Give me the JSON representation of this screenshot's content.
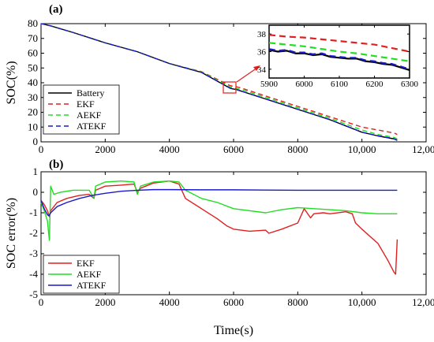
{
  "chart_data": [
    {
      "panel_label": "(a)",
      "type": "line",
      "ylabel": "SOC(%)",
      "xlim": [
        0,
        12000
      ],
      "ylim": [
        0,
        80
      ],
      "xticks": [
        "0",
        "2000",
        "4000",
        "6000",
        "8000",
        "10,000",
        "12,000"
      ],
      "yticks": [
        "0",
        "10",
        "20",
        "30",
        "40",
        "50",
        "60",
        "70",
        "80"
      ],
      "legend_position": "bottom-left",
      "series": [
        {
          "name": "Battery",
          "color": "#000000",
          "dash": "solid",
          "x": [
            0,
            300,
            1000,
            2000,
            3000,
            4000,
            5000,
            5900,
            6100,
            6300,
            7000,
            8000,
            9000,
            10000,
            10500,
            11000,
            11100
          ],
          "y": [
            80,
            78.5,
            74,
            67,
            61,
            53,
            47,
            36.2,
            35.3,
            33.9,
            29,
            22,
            15,
            6.5,
            4,
            2,
            1
          ]
        },
        {
          "name": "EKF",
          "color": "#e02020",
          "dash": "dashed",
          "x": [
            0,
            300,
            1000,
            2000,
            3000,
            4000,
            5000,
            5900,
            6100,
            6300,
            7000,
            8000,
            9000,
            10000,
            10500,
            11000,
            11100
          ],
          "y": [
            80,
            78.5,
            74,
            67,
            61,
            53,
            47.5,
            38,
            37.2,
            36,
            31,
            24,
            17,
            10,
            8,
            6,
            5
          ]
        },
        {
          "name": "AEKF",
          "color": "#22dd22",
          "dash": "dashed",
          "x": [
            0,
            300,
            1000,
            2000,
            3000,
            4000,
            5000,
            5900,
            6100,
            6300,
            7000,
            8000,
            9000,
            10000,
            10500,
            11000,
            11100
          ],
          "y": [
            80,
            78.5,
            74,
            67,
            61,
            53,
            47.3,
            37,
            36,
            35,
            30,
            23,
            16,
            8,
            5,
            3,
            2
          ]
        },
        {
          "name": "ATEKF",
          "color": "#1a1acc",
          "dash": "dashed",
          "x": [
            0,
            300,
            1000,
            2000,
            3000,
            4000,
            5000,
            5900,
            6100,
            6300,
            7000,
            8000,
            9000,
            10000,
            10500,
            11000,
            11100
          ],
          "y": [
            80,
            78.5,
            74,
            67,
            61,
            53,
            47,
            36.3,
            35.4,
            33.9,
            29,
            22,
            15,
            6.6,
            4.1,
            2.1,
            1.1
          ]
        }
      ]
    },
    {
      "type": "line",
      "inset_of": "(a)",
      "xlim": [
        5900,
        6300
      ],
      "ylim": [
        33,
        39
      ],
      "xticks": [
        "5900",
        "6000",
        "6100",
        "6200",
        "6300"
      ],
      "yticks": [
        "34",
        "36",
        "38"
      ],
      "series": [
        {
          "name": "EKF",
          "color": "#e02020",
          "dash": "dashed",
          "x": [
            5900,
            5950,
            6000,
            6050,
            6100,
            6150,
            6200,
            6250,
            6300
          ],
          "y": [
            37.9,
            37.7,
            37.6,
            37.4,
            37.2,
            37.0,
            36.8,
            36.4,
            36.0
          ]
        },
        {
          "name": "AEKF",
          "color": "#22dd22",
          "dash": "dashed",
          "x": [
            5900,
            5950,
            6000,
            6050,
            6100,
            6150,
            6200,
            6250,
            6300
          ],
          "y": [
            37.0,
            36.8,
            36.6,
            36.3,
            36.0,
            35.8,
            35.5,
            35.2,
            34.9
          ]
        },
        {
          "name": "Battery",
          "color": "#000000",
          "dash": "solid",
          "x": [
            5900,
            5925,
            5950,
            5975,
            6000,
            6025,
            6050,
            6075,
            6100,
            6125,
            6150,
            6175,
            6200,
            6225,
            6250,
            6275,
            6300
          ],
          "y": [
            36.2,
            36.0,
            36.1,
            35.8,
            35.8,
            35.6,
            35.7,
            35.4,
            35.3,
            35.2,
            35.2,
            34.9,
            34.8,
            34.6,
            34.5,
            34.2,
            33.9
          ]
        },
        {
          "name": "ATEKF",
          "color": "#1a1acc",
          "dash": "dashed",
          "x": [
            5900,
            5925,
            5950,
            5975,
            6000,
            6025,
            6050,
            6075,
            6100,
            6125,
            6150,
            6175,
            6200,
            6225,
            6250,
            6275,
            6300
          ],
          "y": [
            36.3,
            36.1,
            36.2,
            35.9,
            35.9,
            35.7,
            35.8,
            35.5,
            35.4,
            35.3,
            35.3,
            35.0,
            34.9,
            34.7,
            34.6,
            34.3,
            34.0
          ]
        }
      ]
    },
    {
      "panel_label": "(b)",
      "type": "line",
      "xlabel": "Time(s)",
      "ylabel": "SOC error(%)",
      "xlim": [
        0,
        12000
      ],
      "ylim": [
        -5,
        1
      ],
      "xticks": [
        "0",
        "2000",
        "4000",
        "6000",
        "8000",
        "10,000",
        "12,000"
      ],
      "yticks": [
        "1",
        "0",
        "-1",
        "-2",
        "-3",
        "-4",
        "-5"
      ],
      "legend_position": "bottom-left",
      "series": [
        {
          "name": "EKF",
          "color": "#e02020",
          "x": [
            0,
            100,
            200,
            260,
            300,
            500,
            800,
            1200,
            1500,
            1650,
            1700,
            2000,
            2500,
            2900,
            3000,
            3100,
            3500,
            4000,
            4300,
            4500,
            5000,
            5500,
            5800,
            6000,
            6500,
            7000,
            7100,
            7500,
            8000,
            8200,
            8400,
            8500,
            8800,
            9000,
            9500,
            9700,
            9800,
            10000,
            10500,
            10800,
            11000,
            11050,
            11100
          ],
          "y": [
            -0.4,
            -0.6,
            -0.9,
            -1.2,
            -0.9,
            -0.5,
            -0.3,
            -0.15,
            -0.1,
            -0.3,
            0.1,
            0.3,
            0.35,
            0.4,
            0.0,
            0.2,
            0.45,
            0.55,
            0.4,
            -0.3,
            -0.8,
            -1.3,
            -1.65,
            -1.8,
            -1.9,
            -1.85,
            -2.0,
            -1.8,
            -1.5,
            -0.8,
            -1.25,
            -1.05,
            -1.0,
            -1.05,
            -0.95,
            -1.05,
            -1.5,
            -1.8,
            -2.5,
            -3.3,
            -3.9,
            -4.0,
            -2.3
          ]
        },
        {
          "name": "AEKF",
          "color": "#22dd22",
          "x": [
            0,
            100,
            200,
            260,
            300,
            400,
            600,
            1000,
            1500,
            1650,
            1700,
            2000,
            2500,
            2900,
            3000,
            3100,
            3500,
            4000,
            4300,
            4500,
            5000,
            5500,
            6000,
            7000,
            7500,
            8000,
            8500,
            9000,
            9500,
            10000,
            10500,
            11000,
            11100
          ],
          "y": [
            -0.5,
            -0.9,
            -1.4,
            -2.35,
            0.3,
            -0.1,
            0.0,
            0.1,
            0.1,
            -0.3,
            0.3,
            0.5,
            0.55,
            0.5,
            -0.1,
            0.3,
            0.5,
            0.55,
            0.5,
            0.1,
            -0.3,
            -0.5,
            -0.8,
            -1.0,
            -0.85,
            -0.75,
            -0.8,
            -0.85,
            -0.9,
            -1.0,
            -1.05,
            -1.05,
            -1.05
          ]
        },
        {
          "name": "ATEKF",
          "color": "#1a1acc",
          "x": [
            0,
            100,
            200,
            250,
            300,
            500,
            800,
            1200,
            1600,
            2000,
            2500,
            3000,
            3500,
            4000,
            5000,
            6000,
            7000,
            8000,
            9000,
            10000,
            11000,
            11100
          ],
          "y": [
            -0.4,
            -0.8,
            -1.1,
            -1.15,
            -1.0,
            -0.7,
            -0.5,
            -0.3,
            -0.15,
            -0.05,
            0.05,
            0.1,
            0.13,
            0.13,
            0.12,
            0.12,
            0.11,
            0.1,
            0.1,
            0.1,
            0.1,
            0.1
          ]
        }
      ]
    }
  ]
}
